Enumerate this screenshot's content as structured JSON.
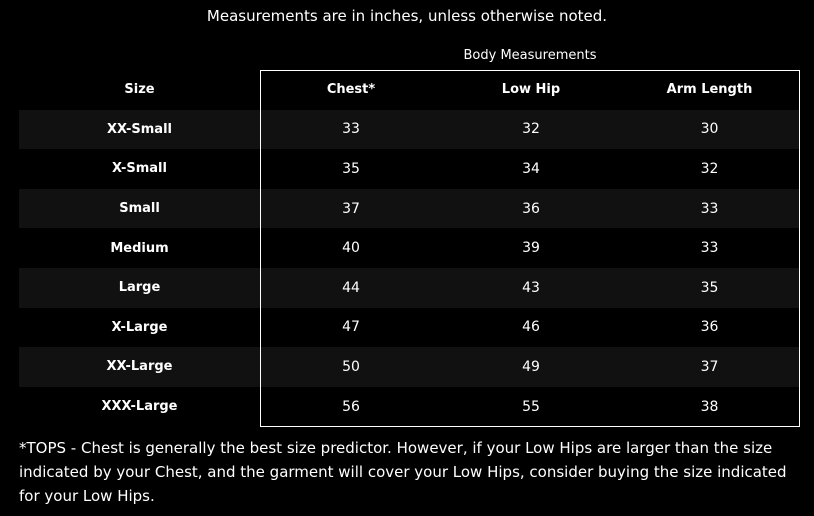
{
  "note": "Measurements are in inches, unless otherwise noted.",
  "group_header": "Body Measurements",
  "columns": [
    "Size",
    "Chest*",
    "Low Hip",
    "Arm Length"
  ],
  "rows": [
    [
      "XX-Small",
      "33",
      "32",
      "30"
    ],
    [
      "X-Small",
      "35",
      "34",
      "32"
    ],
    [
      "Small",
      "37",
      "36",
      "33"
    ],
    [
      "Medium",
      "40",
      "39",
      "33"
    ],
    [
      "Large",
      "44",
      "43",
      "35"
    ],
    [
      "X-Large",
      "47",
      "46",
      "36"
    ],
    [
      "XX-Large",
      "50",
      "49",
      "37"
    ],
    [
      "XXX-Large",
      "56",
      "55",
      "38"
    ]
  ],
  "footnote": "*TOPS - Chest is generally the best size predictor. However, if your Low Hips are larger than the size indicated by your Chest, and the garment will cover your Low Hips, consider buying the size indicated for your Low Hips."
}
